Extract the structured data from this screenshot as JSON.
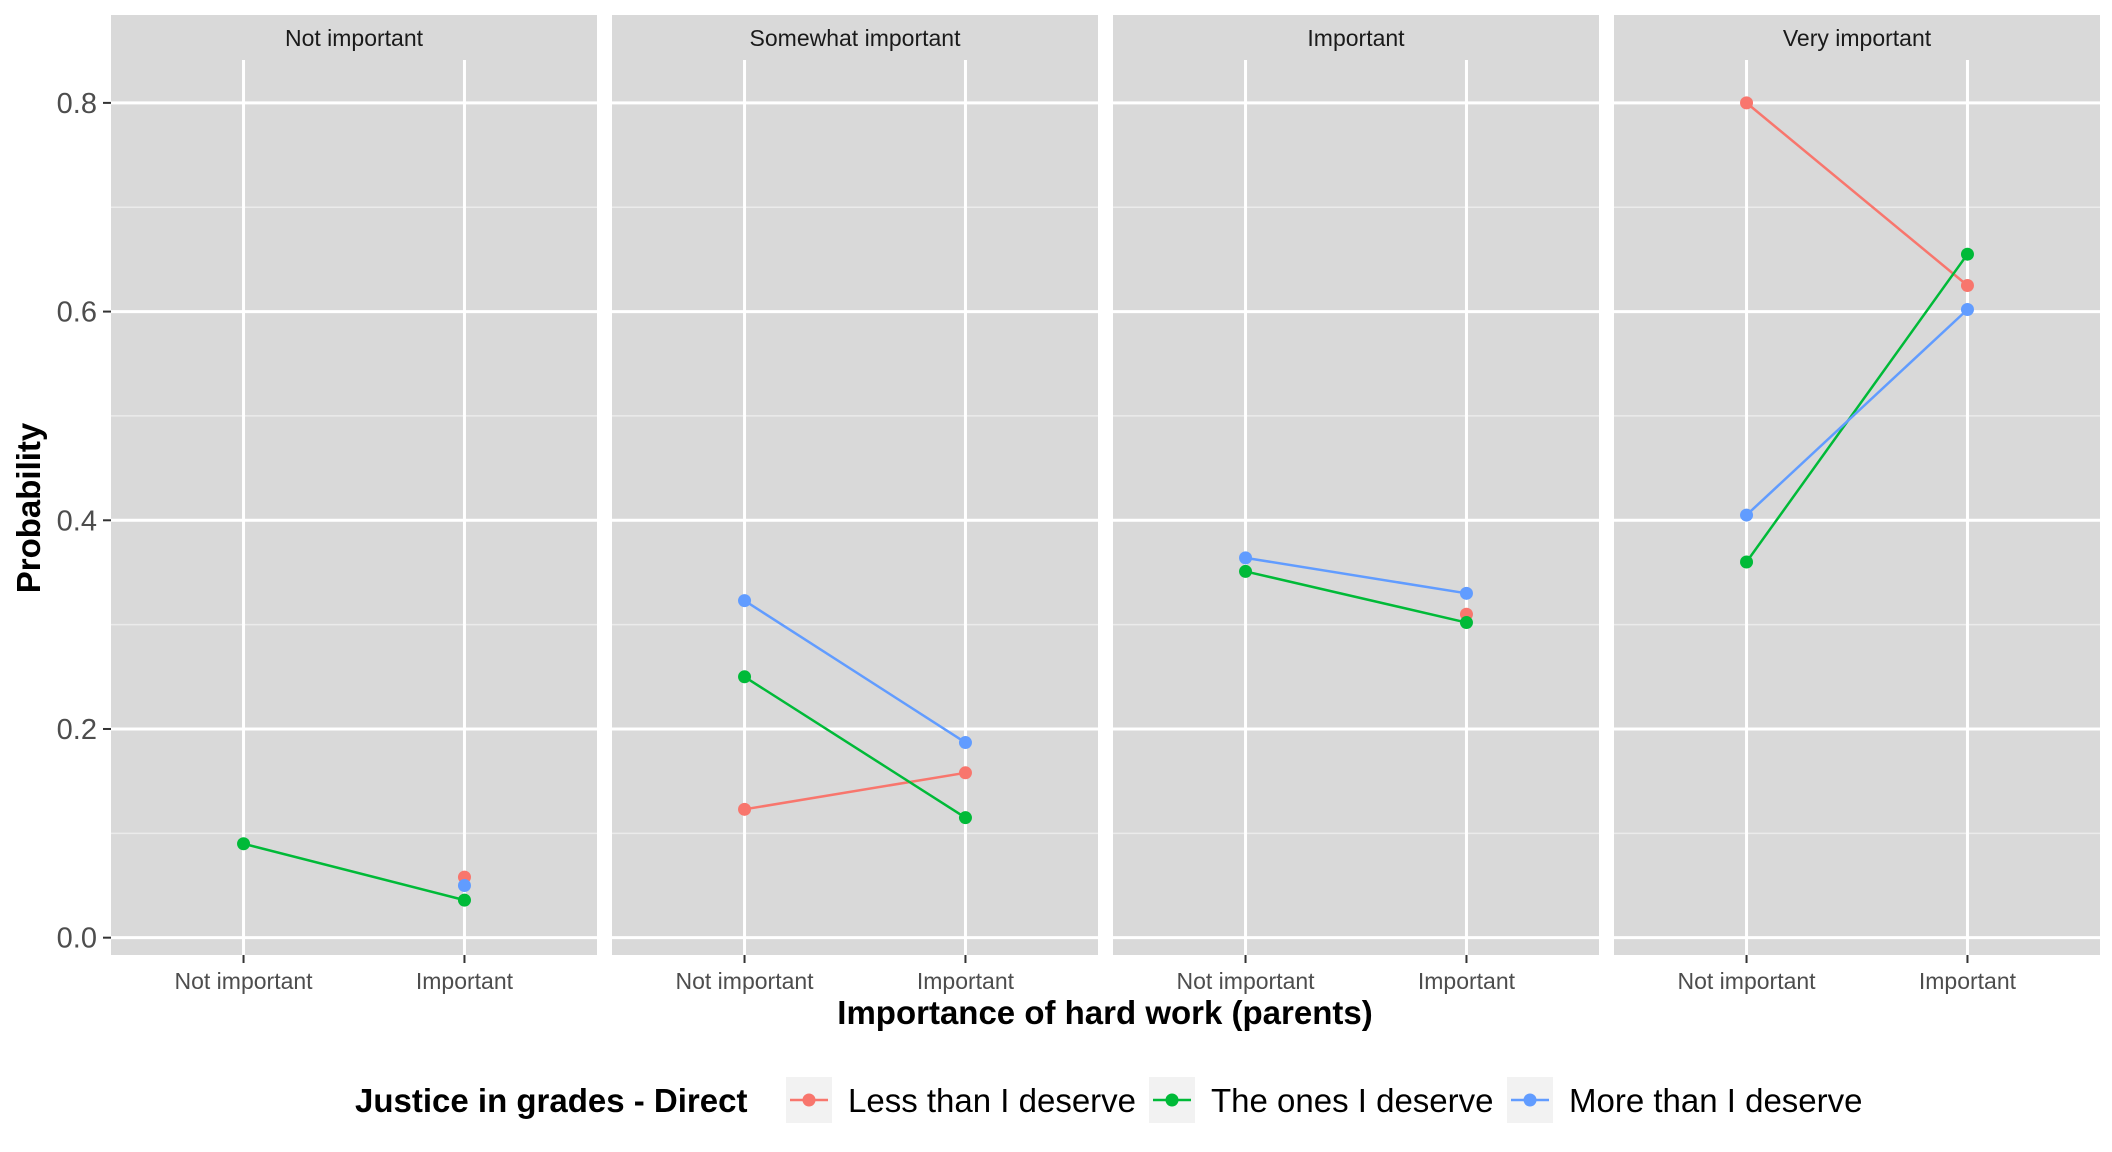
{
  "chart_data": {
    "type": "line",
    "xlabel": "Importance of hard work (parents)",
    "ylabel": "Probability",
    "ylim": [
      0,
      0.8
    ],
    "yticks": [
      "0.0",
      "0.2",
      "0.4",
      "0.6",
      "0.8"
    ],
    "ytick_values": [
      0,
      0.2,
      0.4,
      0.6,
      0.8
    ],
    "categories": [
      "Not important",
      "Important"
    ],
    "legend": {
      "title": "Justice in grades - Direct",
      "placement": "bottom"
    },
    "series_colors": {
      "Less than I deserve": "#F8766D",
      "The ones I deserve": "#00BA38",
      "More than I deserve": "#619CFF"
    },
    "panels": [
      {
        "title": "Not important",
        "series": [
          {
            "name": "Less than I deserve",
            "values": [
              null,
              0.058
            ]
          },
          {
            "name": "The ones I deserve",
            "values": [
              0.09,
              0.036
            ]
          },
          {
            "name": "More than I deserve",
            "values": [
              null,
              0.05
            ]
          }
        ]
      },
      {
        "title": "Somewhat important",
        "series": [
          {
            "name": "Less than I deserve",
            "values": [
              0.123,
              0.158
            ]
          },
          {
            "name": "The ones I deserve",
            "values": [
              0.25,
              0.115
            ]
          },
          {
            "name": "More than I deserve",
            "values": [
              0.323,
              0.187
            ]
          }
        ]
      },
      {
        "title": "Important",
        "series": [
          {
            "name": "Less than I deserve",
            "values": [
              null,
              0.31
            ]
          },
          {
            "name": "The ones I deserve",
            "values": [
              0.351,
              0.302
            ]
          },
          {
            "name": "More than I deserve",
            "values": [
              0.364,
              0.33
            ]
          }
        ]
      },
      {
        "title": "Very important",
        "series": [
          {
            "name": "Less than I deserve",
            "values": [
              0.8,
              0.625
            ]
          },
          {
            "name": "The ones I deserve",
            "values": [
              0.36,
              0.655
            ]
          },
          {
            "name": "More than I deserve",
            "values": [
              0.405,
              0.602
            ]
          }
        ]
      }
    ]
  }
}
